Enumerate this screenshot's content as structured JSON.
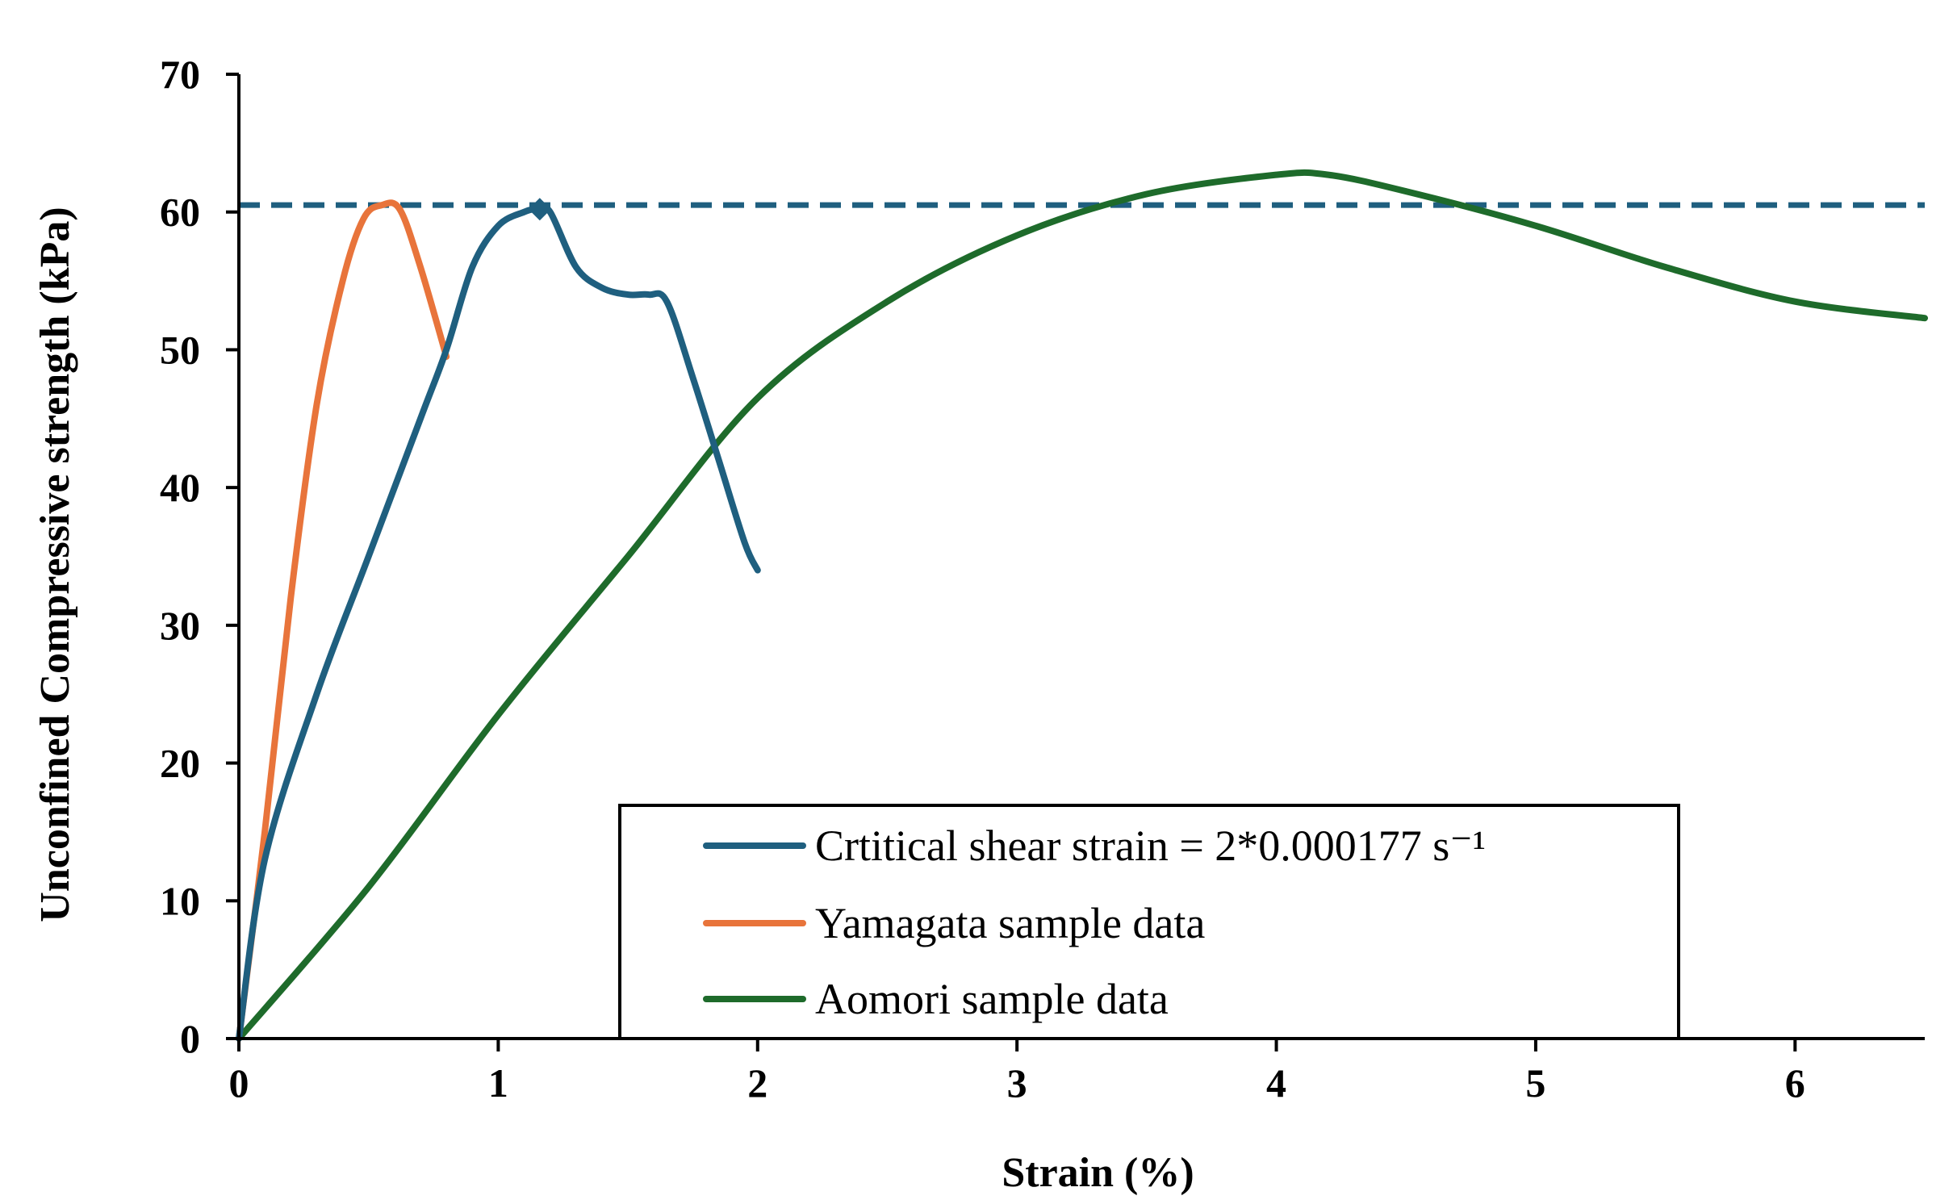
{
  "chart_data": {
    "type": "line",
    "title": "",
    "xlabel": "Strain (%)",
    "ylabel": "Unconfined Compressive strength (kPa)",
    "xlim": [
      0,
      6.5
    ],
    "ylim": [
      0,
      70
    ],
    "x_ticks": [
      "0",
      "1",
      "2",
      "3",
      "4",
      "5",
      "6"
    ],
    "y_ticks": [
      "0",
      "10",
      "20",
      "30",
      "40",
      "50",
      "60",
      "70"
    ],
    "grid": false,
    "legend_position": "bottom-center",
    "reference_line": {
      "y": 60.5,
      "style": "dashed",
      "color": "#1f5f7f"
    },
    "series": [
      {
        "name": "Crtitical shear strain = 2*0.000177 s⁻¹",
        "color": "#1f5f7f",
        "points": [
          [
            0,
            0
          ],
          [
            0.1,
            13
          ],
          [
            0.3,
            25
          ],
          [
            0.5,
            35
          ],
          [
            0.7,
            45
          ],
          [
            0.8,
            50
          ],
          [
            0.9,
            56
          ],
          [
            1.0,
            59
          ],
          [
            1.1,
            60
          ],
          [
            1.15,
            60.2
          ],
          [
            1.2,
            60
          ],
          [
            1.3,
            56
          ],
          [
            1.4,
            54.5
          ],
          [
            1.5,
            54
          ],
          [
            1.58,
            54
          ],
          [
            1.65,
            53.5
          ],
          [
            1.75,
            48
          ],
          [
            1.85,
            42
          ],
          [
            1.95,
            36
          ],
          [
            2.0,
            34
          ]
        ],
        "marker": {
          "x": 1.16,
          "y": 60.2,
          "shape": "diamond"
        }
      },
      {
        "name": "Yamagata sample data",
        "color": "#e8743b",
        "points": [
          [
            0,
            0
          ],
          [
            0.1,
            15
          ],
          [
            0.2,
            32
          ],
          [
            0.3,
            46
          ],
          [
            0.4,
            55
          ],
          [
            0.48,
            59.5
          ],
          [
            0.55,
            60.5
          ],
          [
            0.62,
            60.2
          ],
          [
            0.7,
            56
          ],
          [
            0.8,
            49.5
          ]
        ]
      },
      {
        "name": "Aomori sample data",
        "color": "#1e6b2b",
        "points": [
          [
            0,
            0
          ],
          [
            0.5,
            11
          ],
          [
            1.0,
            23.5
          ],
          [
            1.5,
            35
          ],
          [
            2.0,
            46.5
          ],
          [
            2.5,
            53.5
          ],
          [
            3.0,
            58.3
          ],
          [
            3.5,
            61.3
          ],
          [
            4.0,
            62.7
          ],
          [
            4.2,
            62.7
          ],
          [
            4.5,
            61.5
          ],
          [
            5.0,
            59
          ],
          [
            5.5,
            56
          ],
          [
            6.0,
            53.5
          ],
          [
            6.5,
            52.3
          ]
        ]
      }
    ]
  }
}
